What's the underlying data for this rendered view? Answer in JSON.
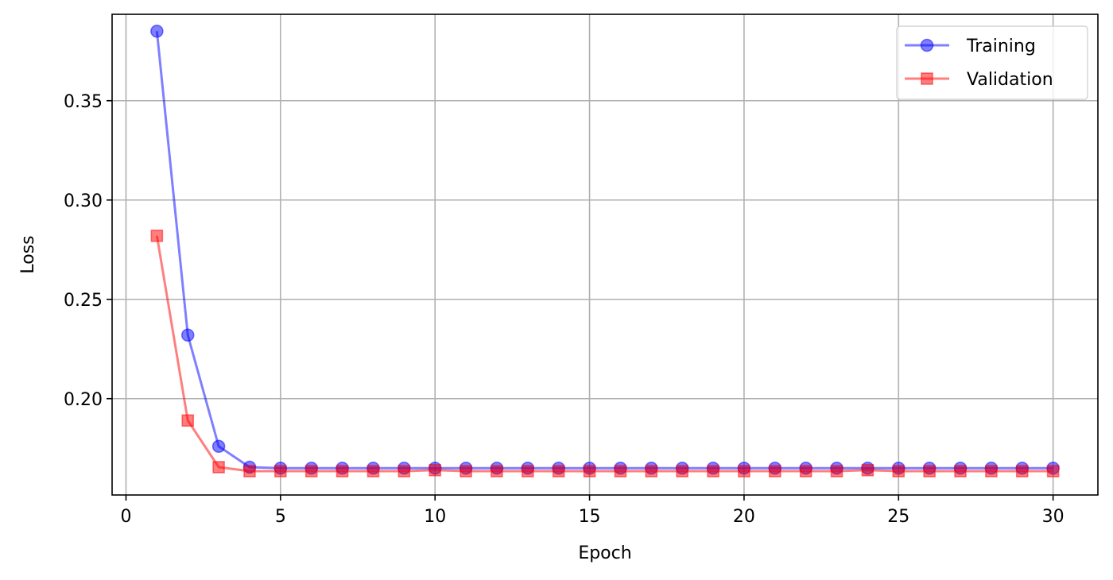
{
  "chart_data": {
    "type": "line",
    "title": "",
    "xlabel": "Epoch",
    "ylabel": "Loss",
    "xlim": [
      -0.45,
      31.45
    ],
    "ylim": [
      0.1515,
      0.3935
    ],
    "xticks": [
      0,
      5,
      10,
      15,
      20,
      25,
      30
    ],
    "yticks": [
      0.2,
      0.25,
      0.3,
      0.35
    ],
    "ytick_labels": [
      "0.20",
      "0.25",
      "0.30",
      "0.35"
    ],
    "grid": true,
    "legend_position": "top-right",
    "x": [
      1,
      2,
      3,
      4,
      5,
      6,
      7,
      8,
      9,
      10,
      11,
      12,
      13,
      14,
      15,
      16,
      17,
      18,
      19,
      20,
      21,
      22,
      23,
      24,
      25,
      26,
      27,
      28,
      29,
      30
    ],
    "series": [
      {
        "name": "Training",
        "color": "#0000ff",
        "marker": "circle",
        "values": [
          0.385,
          0.232,
          0.176,
          0.1655,
          0.165,
          0.165,
          0.165,
          0.165,
          0.165,
          0.165,
          0.165,
          0.165,
          0.165,
          0.165,
          0.165,
          0.165,
          0.165,
          0.165,
          0.165,
          0.165,
          0.165,
          0.165,
          0.165,
          0.165,
          0.165,
          0.165,
          0.165,
          0.165,
          0.165,
          0.165
        ]
      },
      {
        "name": "Validation",
        "color": "#ff0000",
        "marker": "square",
        "values": [
          0.282,
          0.189,
          0.1655,
          0.1635,
          0.1635,
          0.1635,
          0.1635,
          0.1635,
          0.1635,
          0.164,
          0.1635,
          0.1635,
          0.1635,
          0.1635,
          0.1635,
          0.1635,
          0.1635,
          0.1635,
          0.1635,
          0.1635,
          0.1635,
          0.1635,
          0.1635,
          0.164,
          0.1635,
          0.1635,
          0.1635,
          0.1635,
          0.1635,
          0.1635
        ]
      }
    ]
  }
}
